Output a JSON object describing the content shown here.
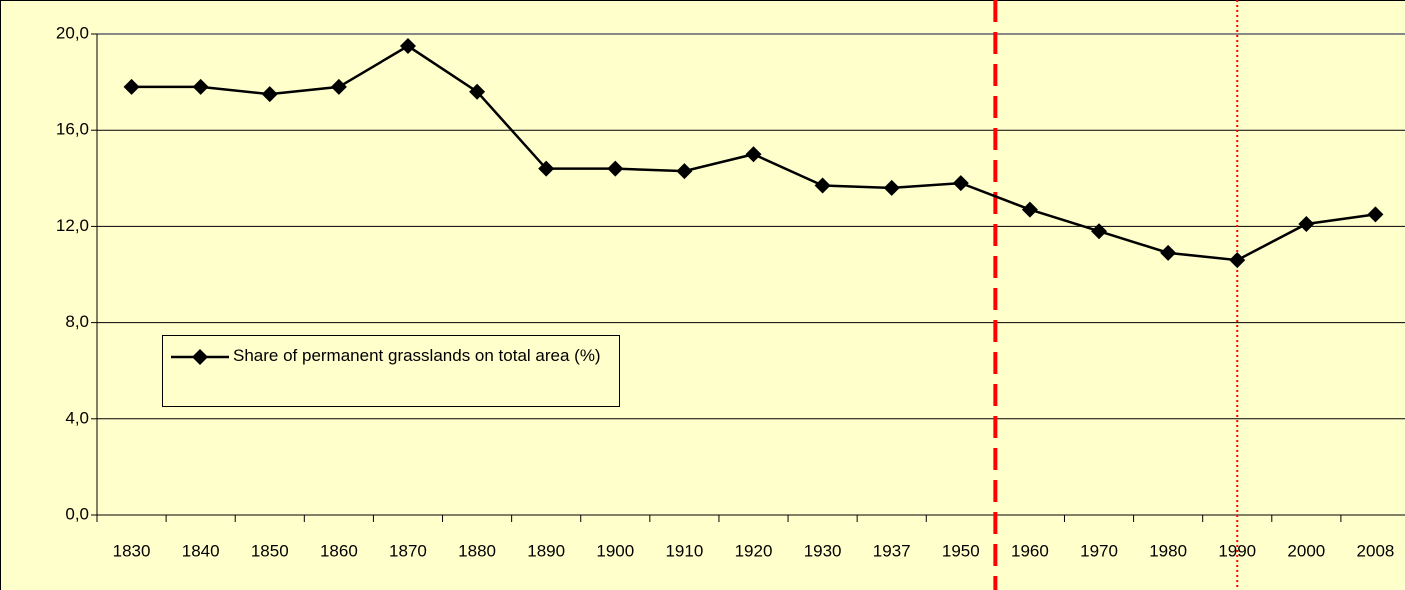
{
  "chart_data": {
    "type": "line",
    "categories": [
      "1830",
      "1840",
      "1850",
      "1860",
      "1870",
      "1880",
      "1890",
      "1900",
      "1910",
      "1920",
      "1930",
      "1937",
      "1950",
      "1960",
      "1970",
      "1980",
      "1990",
      "2000",
      "2008"
    ],
    "series": [
      {
        "name": "Share of permanent grasslands on total area (%)",
        "color": "#000000",
        "values": [
          17.8,
          17.8,
          17.5,
          17.8,
          19.5,
          17.6,
          14.4,
          14.4,
          14.3,
          15.0,
          13.7,
          13.6,
          13.8,
          12.7,
          11.8,
          10.9,
          10.6,
          12.1,
          12.5
        ]
      }
    ],
    "ylim": [
      0,
      20
    ],
    "yticks": [
      {
        "value": 0,
        "label": "0,0"
      },
      {
        "value": 4,
        "label": "4,0"
      },
      {
        "value": 8,
        "label": "8,0"
      },
      {
        "value": 12,
        "label": "12,0"
      },
      {
        "value": 16,
        "label": "16,0"
      },
      {
        "value": 20,
        "label": "20,0"
      }
    ],
    "grid": true,
    "legend": "left",
    "reference_lines": [
      {
        "between": [
          "1950",
          "1960"
        ],
        "style": "dashed",
        "color": "#ff0000"
      },
      {
        "at": "1990",
        "style": "dotted",
        "color": "#ff0000"
      }
    ]
  }
}
